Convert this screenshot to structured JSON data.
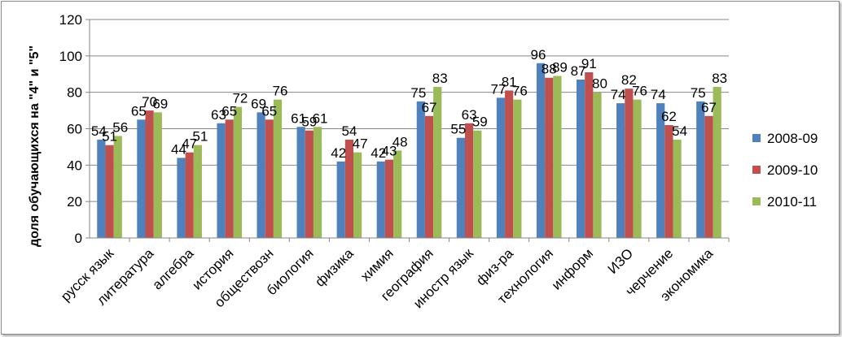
{
  "chart_data": {
    "type": "bar",
    "title": "",
    "xlabel": "",
    "ylabel": "доля обучающихся на \"4\" и \"5\"",
    "ylim": [
      0,
      120
    ],
    "yticks": [
      0,
      20,
      40,
      60,
      80,
      100,
      120
    ],
    "grid": true,
    "legend_position": "right",
    "categories": [
      "русск язык",
      "литература",
      "алгебра",
      "история",
      "обществозн",
      "биология",
      "физика",
      "химия",
      "география",
      "иностр язык",
      "физ-ра",
      "технология",
      "информ",
      "ИЗО",
      "черчение",
      "экономика"
    ],
    "series": [
      {
        "name": "2008-09",
        "color": "#4f81bd",
        "values": [
          54,
          65,
          44,
          63,
          69,
          61,
          42,
          42,
          75,
          55,
          77,
          96,
          87,
          74,
          74,
          75
        ]
      },
      {
        "name": "2009-10",
        "color": "#c0504d",
        "values": [
          51,
          70,
          47,
          65,
          65,
          59,
          54,
          43,
          67,
          63,
          81,
          88,
          91,
          82,
          62,
          67
        ]
      },
      {
        "name": "2010-11",
        "color": "#9bbb59",
        "values": [
          56,
          69,
          51,
          72,
          76,
          61,
          47,
          48,
          83,
          59,
          76,
          89,
          80,
          76,
          54,
          83
        ]
      }
    ]
  }
}
